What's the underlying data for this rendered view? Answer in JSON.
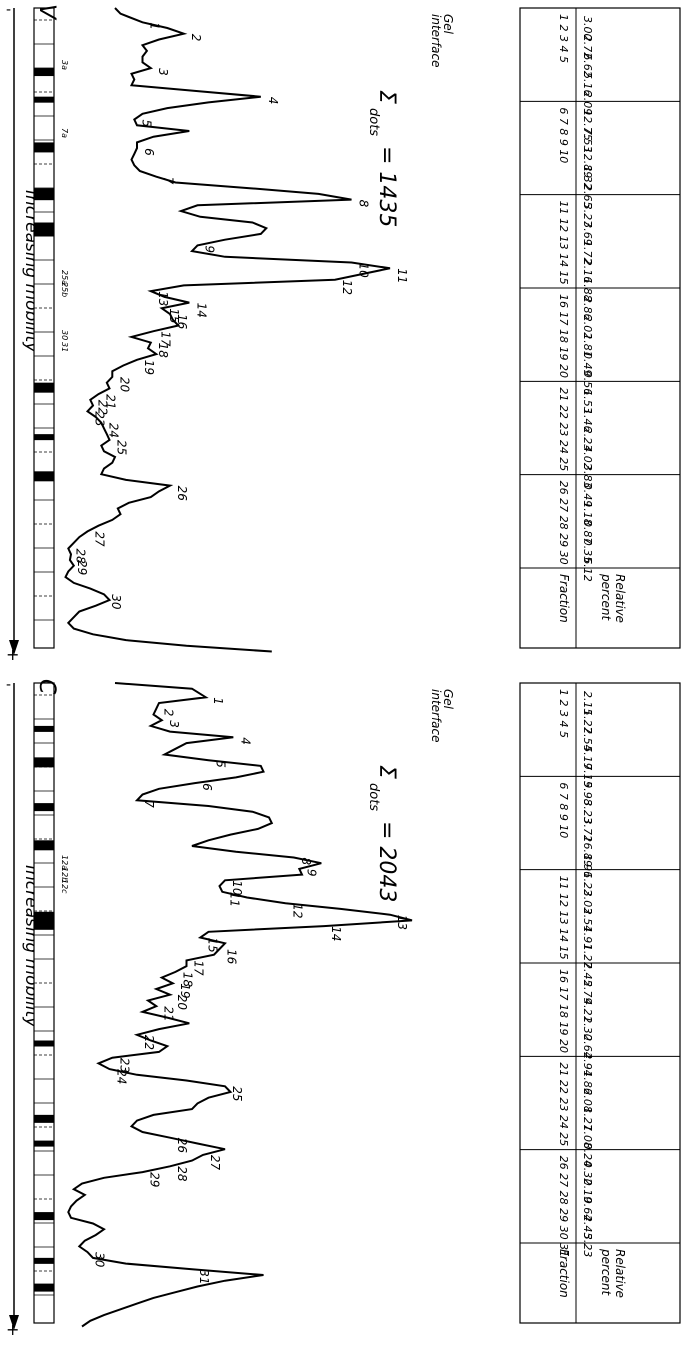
{
  "panels": [
    {
      "strip_label": "V",
      "gel_interface": [
        "Gel",
        "interface"
      ],
      "sum_label": "Σ",
      "sum_sub": "dots",
      "sum_value": "= 1435",
      "axis_minus": "-",
      "axis_plus": "+",
      "axis_label": "Increasing  mobility",
      "sub_fraction_labels": [
        "3a",
        "7a",
        "25a",
        "25b",
        "30",
        "31"
      ],
      "table": {
        "row1_header": "Fraction",
        "row2_header": [
          "Relative",
          "percent"
        ],
        "fraction_groups": [
          "1 2 3 4 5",
          "6 7 8 9 10",
          "11 12 13 14 15",
          "16 17 18 19 20",
          "21 22 23 24 25",
          "26 27 28 29 30"
        ],
        "values": [
          "3.00",
          "2.72",
          "6.62",
          "5.16",
          "2.09",
          "12.75",
          "7.53",
          "12.89",
          "1.32",
          "2.65",
          "3.27",
          "3.69",
          "1.72",
          "2.16",
          "1.88",
          "2.86",
          "2.02",
          "1.81",
          "0.49",
          "0.56",
          "1.53",
          "1.46",
          "2.23",
          "4.02",
          "3.83",
          "0.49",
          "1.18",
          "0.87",
          "0.35",
          "6.12"
        ]
      },
      "peak_labels": [
        "1",
        "2",
        "3",
        "4",
        "5",
        "6",
        "7",
        "8",
        "9",
        "10",
        "11",
        "12",
        "13",
        "14",
        "15",
        "16",
        "17",
        "18",
        "19",
        "20",
        "21",
        "22",
        "23",
        "24",
        "25",
        "26",
        "27",
        "28",
        "29",
        "30"
      ]
    },
    {
      "strip_label": "C",
      "gel_interface": [
        "Gel",
        "interface"
      ],
      "sum_label": "Σ",
      "sum_sub": "dots",
      "sum_value": "= 2043",
      "axis_minus": "-",
      "axis_plus": "+",
      "axis_label": "Increasing  mobility",
      "sub_fraction_labels": [
        "12a",
        "12b",
        "12c"
      ],
      "table": {
        "row1_header": "Fraction",
        "row2_header": [
          "Relative",
          "percent"
        ],
        "fraction_groups": [
          "1 2 3 4 5",
          "6 7 8 9 10",
          "11 12 13 14 15",
          "16 17 18 19 20",
          "21 22 23 24 25",
          "26 27 28 29 30 31"
        ],
        "values": [
          "2.15",
          "1.27",
          "2.54",
          "5.19",
          "7.15",
          "9.98",
          "3.23",
          "3.72",
          "16.89",
          "1.96",
          "1.22",
          "3.03",
          "2.54",
          "1.91",
          "1.27",
          "2.45",
          "2.79",
          "4.21",
          "2.30",
          "2.64",
          "2.94",
          "1.86",
          "2.08",
          "1.27",
          "1.08",
          "0.24",
          "0.32",
          "0.19",
          "0.64",
          "2.45",
          "3.23"
        ]
      },
      "peak_labels": [
        "1",
        "2",
        "3",
        "4",
        "5",
        "6",
        "7",
        "8",
        "9",
        "10",
        "11",
        "12",
        "13",
        "14",
        "15",
        "16",
        "17",
        "18",
        "19",
        "20",
        "21",
        "22",
        "23",
        "24",
        "25",
        "26",
        "27",
        "28",
        "29",
        "30",
        "31"
      ]
    }
  ],
  "chart_data": [
    {
      "type": "line",
      "title": "",
      "series_label": "V",
      "annotation": "Σdots = 1435",
      "xlabel": "Increasing mobility",
      "x_direction": "from - (left) to + (right)",
      "x": [
        0,
        4,
        10,
        14,
        18,
        22,
        26,
        30,
        34,
        38,
        42,
        46,
        50,
        54,
        58,
        62,
        66,
        70,
        74,
        78,
        82,
        86,
        90,
        94,
        98,
        102,
        106,
        110,
        114,
        118,
        122,
        126,
        130,
        134,
        138,
        142,
        146,
        150,
        154,
        158,
        162,
        166,
        170,
        174,
        178,
        182,
        186,
        190,
        194,
        198,
        202,
        206,
        210,
        214,
        218,
        222,
        226,
        230,
        234,
        238,
        242,
        246,
        250,
        254,
        258,
        262,
        266,
        270,
        274,
        278,
        282,
        286,
        290,
        294,
        298,
        302,
        306,
        310,
        314,
        318,
        322,
        326,
        330,
        334,
        338,
        342,
        346,
        350,
        354,
        358,
        362,
        366,
        370,
        374,
        378,
        382,
        386,
        390,
        394,
        398,
        402,
        406,
        410,
        414,
        418,
        422,
        426,
        430,
        434,
        438,
        442,
        446,
        450
      ],
      "y": [
        100,
        110,
        150,
        195,
        225,
        180,
        150,
        158,
        150,
        150,
        165,
        130,
        135,
        130,
        245,
        365,
        270,
        195,
        150,
        135,
        140,
        235,
        170,
        140,
        140,
        135,
        130,
        135,
        145,
        175,
        210,
        345,
        470,
        530,
        250,
        220,
        255,
        350,
        375,
        365,
        300,
        250,
        240,
        300,
        530,
        600,
        550,
        500,
        225,
        165,
        190,
        235,
        185,
        200,
        205,
        215,
        170,
        130,
        165,
        160,
        175,
        140,
        115,
        95,
        95,
        85,
        90,
        70,
        55,
        60,
        50,
        65,
        75,
        80,
        85,
        90,
        75,
        80,
        100,
        95,
        80,
        75,
        120,
        200,
        180,
        165,
        125,
        105,
        110,
        95,
        70,
        50,
        35,
        25,
        15,
        20,
        18,
        25,
        15,
        10,
        25,
        55,
        80,
        90,
        65,
        35,
        25,
        15,
        25,
        60,
        120,
        230,
        385
      ],
      "peak_labels": [
        "1",
        "2",
        "3",
        "4",
        "5",
        "6",
        "7",
        "8",
        "9",
        "10",
        "11",
        "12",
        "13",
        "14",
        "15",
        "16",
        "17",
        "18",
        "19",
        "20",
        "21",
        "22",
        "23",
        "24",
        "25",
        "26",
        "27",
        "28",
        "29",
        "30"
      ],
      "relative_percent": [
        3.0,
        2.72,
        6.62,
        5.16,
        2.09,
        12.75,
        7.53,
        12.89,
        1.32,
        2.65,
        3.27,
        3.69,
        1.72,
        2.16,
        1.88,
        2.86,
        2.02,
        1.81,
        0.49,
        0.56,
        1.53,
        1.46,
        2.23,
        4.02,
        3.83,
        0.49,
        1.18,
        0.87,
        0.35,
        6.12
      ]
    },
    {
      "type": "line",
      "title": "",
      "series_label": "C",
      "annotation": "Σdots = 2043",
      "xlabel": "Increasing mobility",
      "x_direction": "from - (left) to + (right)",
      "x": [
        0,
        4,
        10,
        14,
        18,
        22,
        26,
        30,
        34,
        38,
        42,
        46,
        50,
        54,
        58,
        62,
        66,
        70,
        74,
        78,
        82,
        86,
        90,
        94,
        98,
        102,
        106,
        110,
        114,
        118,
        122,
        126,
        130,
        134,
        138,
        142,
        146,
        150,
        154,
        158,
        162,
        166,
        170,
        174,
        178,
        182,
        186,
        190,
        194,
        198,
        202,
        206,
        210,
        214,
        218,
        222,
        226,
        230,
        234,
        238,
        242,
        246,
        250,
        254,
        258,
        262,
        266,
        270,
        274,
        278,
        282,
        286,
        290,
        294,
        298,
        302,
        306,
        310,
        314,
        318,
        322,
        326,
        330,
        334,
        338,
        342,
        346,
        350,
        354,
        358,
        362,
        366,
        370,
        374,
        378,
        382,
        386,
        390,
        394,
        398,
        402,
        406,
        410,
        414,
        418,
        422,
        426,
        430,
        434,
        438,
        442,
        446,
        450
      ],
      "y": [
        100,
        240,
        265,
        180,
        175,
        170,
        185,
        165,
        200,
        315,
        230,
        210,
        190,
        270,
        365,
        370,
        320,
        245,
        180,
        150,
        140,
        270,
        350,
        380,
        385,
        360,
        310,
        270,
        240,
        320,
        425,
        475,
        435,
        440,
        300,
        290,
        295,
        340,
        410,
        510,
        600,
        640,
        480,
        270,
        255,
        300,
        290,
        280,
        230,
        230,
        210,
        185,
        205,
        175,
        200,
        160,
        175,
        150,
        195,
        235,
        180,
        140,
        165,
        195,
        180,
        95,
        70,
        90,
        140,
        230,
        300,
        310,
        270,
        250,
        240,
        170,
        140,
        130,
        150,
        200,
        250,
        300,
        260,
        240,
        200,
        150,
        80,
        40,
        25,
        45,
        30,
        20,
        15,
        20,
        60,
        80,
        65,
        45,
        35,
        50,
        60,
        120,
        240,
        370,
        300,
        250,
        210,
        170,
        140,
        110,
        80,
        55,
        40
      ],
      "peak_labels": [
        "1",
        "2",
        "3",
        "4",
        "5",
        "6",
        "7",
        "8",
        "9",
        "10",
        "11",
        "12",
        "13",
        "14",
        "15",
        "16",
        "17",
        "18",
        "19",
        "20",
        "21",
        "22",
        "23",
        "24",
        "25",
        "26",
        "27",
        "28",
        "29",
        "30",
        "31"
      ],
      "relative_percent": [
        2.15,
        1.27,
        2.54,
        5.19,
        7.15,
        9.98,
        3.23,
        3.72,
        16.89,
        1.96,
        1.22,
        3.03,
        2.54,
        1.91,
        1.27,
        2.45,
        2.79,
        4.21,
        2.3,
        2.64,
        2.94,
        1.86,
        2.08,
        1.27,
        1.08,
        0.24,
        0.32,
        0.19,
        0.64,
        2.45,
        3.23
      ]
    }
  ]
}
